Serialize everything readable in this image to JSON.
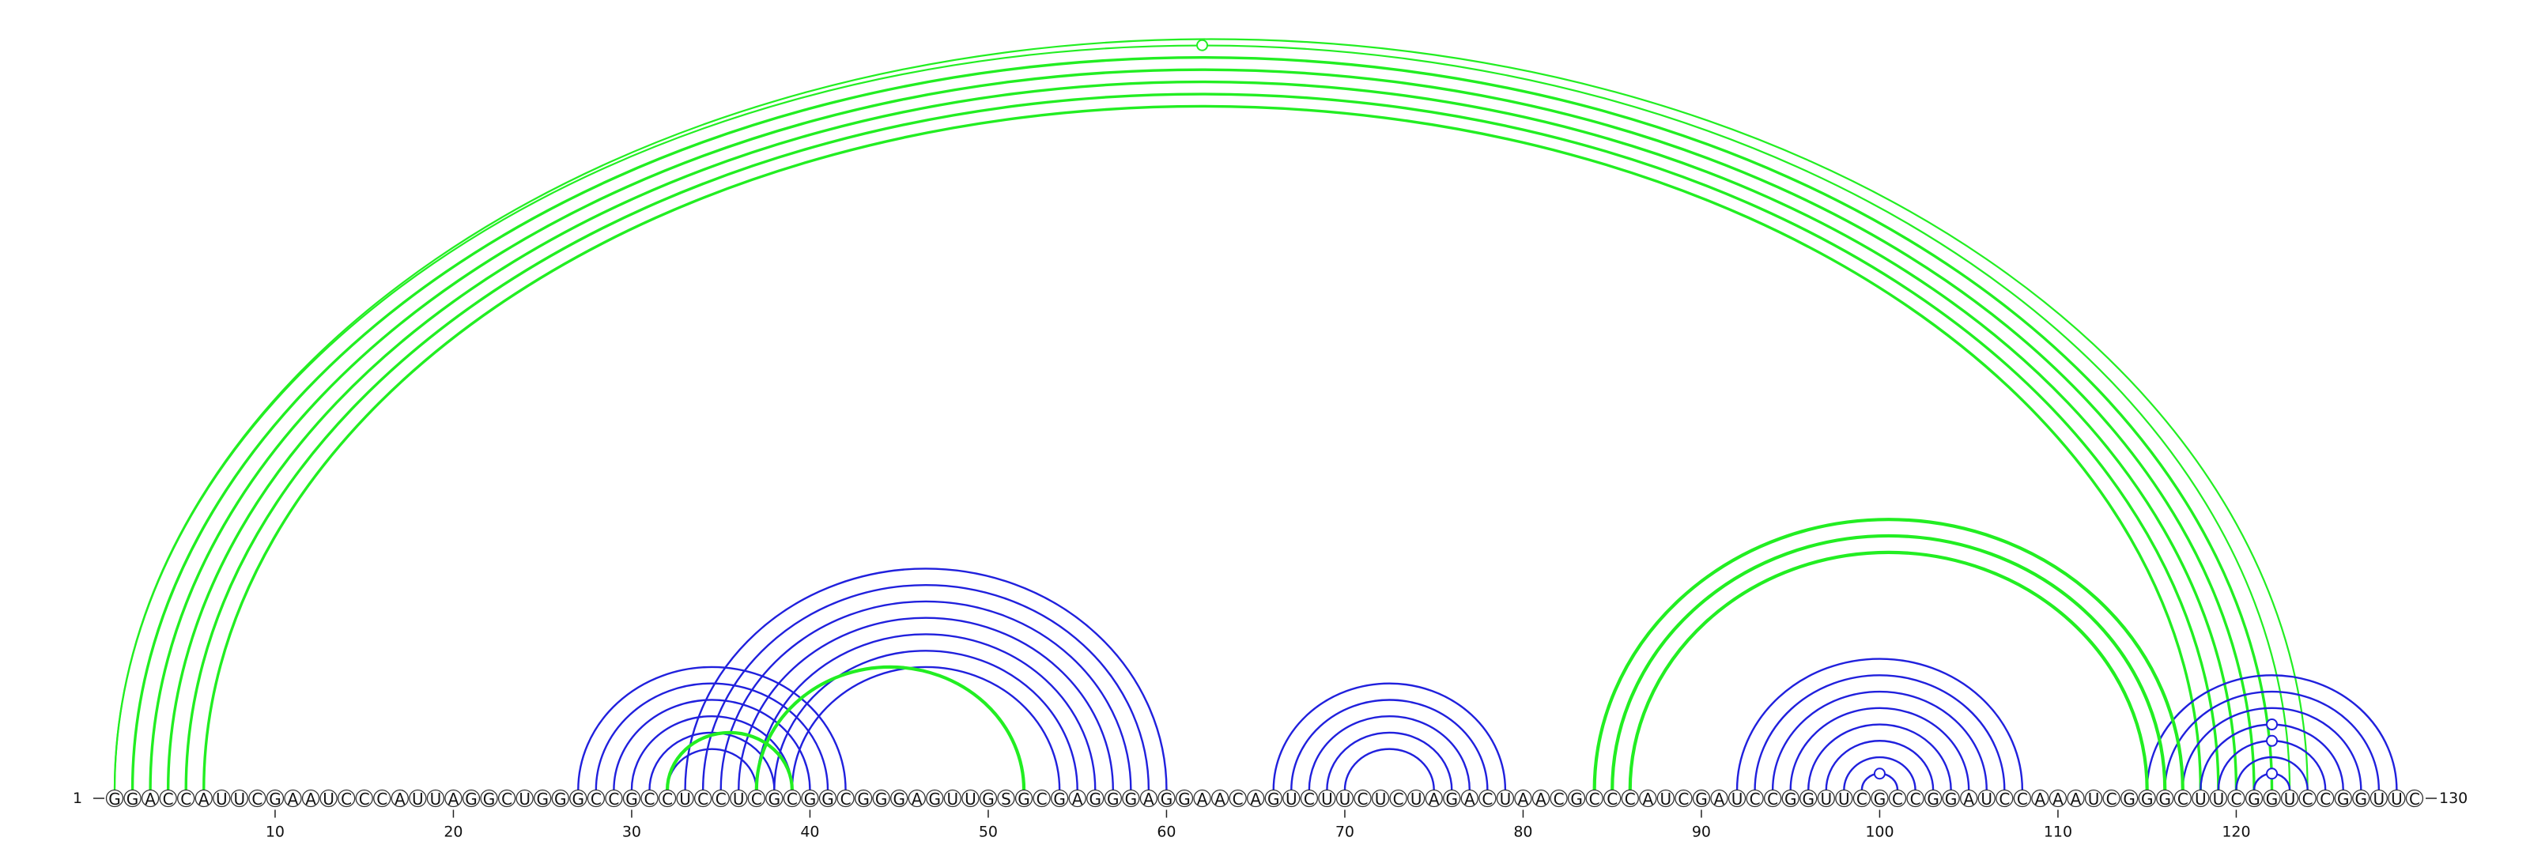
{
  "sequence": "GGACCAUUCGAAUCCCAUUAGGCUGGGCCGCCUCCUCGCGGCGGGAGUUGSGCGAGGGAGGAACAGUCUUCUCUAGACUAACGCCCAUCGAUCCGGUUCGCCGGAUCCAAAUCGGGCUUCGGUCCGGUUC",
  "length": 130,
  "start_label": "1",
  "end_label": "130",
  "ticks": [
    10,
    20,
    30,
    40,
    50,
    60,
    70,
    80,
    90,
    100,
    110,
    120
  ],
  "colors": {
    "green": "#22ee22",
    "blue": "#2020dd",
    "base_stroke": "#333333"
  },
  "green_arcs_above": [
    [
      1,
      123
    ],
    [
      1,
      124
    ],
    [
      2,
      122
    ],
    [
      3,
      121
    ],
    [
      4,
      120
    ],
    [
      5,
      119
    ],
    [
      6,
      118
    ]
  ],
  "green_arc_markers": [
    [
      1,
      123
    ]
  ],
  "blue_arcs_below": [
    [
      27,
      42
    ],
    [
      28,
      41
    ],
    [
      29,
      40
    ],
    [
      30,
      39
    ],
    [
      31,
      38
    ],
    [
      32,
      37
    ],
    [
      33,
      60
    ],
    [
      34,
      59
    ],
    [
      35,
      58
    ],
    [
      36,
      57
    ],
    [
      37,
      56
    ],
    [
      38,
      55
    ],
    [
      39,
      54
    ],
    [
      66,
      79
    ],
    [
      67,
      78
    ],
    [
      68,
      77
    ],
    [
      69,
      76
    ],
    [
      70,
      75
    ],
    [
      92,
      108
    ],
    [
      93,
      107
    ],
    [
      94,
      106
    ],
    [
      95,
      105
    ],
    [
      96,
      104
    ],
    [
      97,
      103
    ],
    [
      98,
      102
    ],
    [
      99,
      101
    ],
    [
      115,
      129
    ],
    [
      116,
      128
    ],
    [
      117,
      127
    ],
    [
      118,
      126
    ],
    [
      119,
      125
    ],
    [
      120,
      124
    ],
    [
      121,
      123
    ]
  ],
  "green_arcs_below": [
    [
      32,
      39
    ],
    [
      37,
      52
    ],
    [
      84,
      117
    ],
    [
      85,
      116
    ],
    [
      86,
      115
    ]
  ],
  "blue_arc_markers": [
    [
      99,
      101
    ],
    [
      118,
      126
    ],
    [
      119,
      125
    ],
    [
      121,
      123
    ]
  ]
}
